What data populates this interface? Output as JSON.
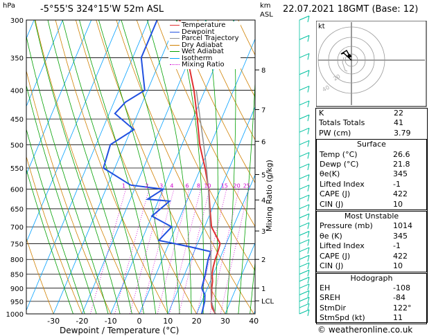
{
  "header": {
    "pressure_unit": "hPa",
    "location": "-5°55'S  324°15'W  52m  ASL",
    "height_unit_km": "km",
    "height_unit_asl": "ASL",
    "datetime": "22.07.2021  18GMT  (Base: 12)"
  },
  "chart_data": {
    "type": "line",
    "xlabel": "Dewpoint / Temperature (°C)",
    "ylabel": "hPa",
    "right_axis_label": "Mixing Ratio (g/kg)",
    "x_ticks": [
      -30,
      -20,
      -10,
      0,
      10,
      20,
      30,
      40
    ],
    "pressure_ticks": [
      300,
      350,
      400,
      450,
      500,
      550,
      600,
      650,
      700,
      750,
      800,
      850,
      900,
      950,
      1000
    ],
    "pressure_ticks_labelled": [
      "300",
      "350",
      "400",
      "450",
      "500",
      "550",
      "600",
      "650",
      "700",
      "750",
      "800",
      "850",
      "900",
      "950",
      "1000"
    ],
    "km_ticks": [
      {
        "label": "8",
        "p": 368
      },
      {
        "label": "7",
        "p": 433
      },
      {
        "label": "6",
        "p": 493
      },
      {
        "label": "5",
        "p": 565
      },
      {
        "label": "4",
        "p": 627
      },
      {
        "label": "3",
        "p": 712
      },
      {
        "label": "2",
        "p": 800
      },
      {
        "label": "1",
        "p": 900
      },
      {
        "label": "LCL",
        "p": 948
      }
    ],
    "mixing_ratio_labels": [
      "1",
      "2",
      "3",
      "4",
      "6",
      "8",
      "10",
      "15",
      "20",
      "25"
    ],
    "mixing_ratio_values": [
      1,
      2,
      3,
      4,
      6,
      8,
      10,
      15,
      20,
      25
    ],
    "legend": [
      {
        "name": "Temperature",
        "color": "#e03030"
      },
      {
        "name": "Dewpoint",
        "color": "#2050e0"
      },
      {
        "name": "Parcel Trajectory",
        "color": "#909090"
      },
      {
        "name": "Dry Adiabat",
        "color": "#d08000"
      },
      {
        "name": "Wet Adiabat",
        "color": "#00a000"
      },
      {
        "name": "Isotherm",
        "color": "#00a0ff"
      },
      {
        "name": "Mixing Ratio",
        "color": "#d000d0"
      }
    ],
    "series": [
      {
        "name": "Temperature",
        "color": "#e03030",
        "points": [
          [
            1000,
            26.6
          ],
          [
            975,
            24.5
          ],
          [
            950,
            23.3
          ],
          [
            925,
            22.5
          ],
          [
            900,
            21.5
          ],
          [
            875,
            20.8
          ],
          [
            850,
            19.6
          ],
          [
            825,
            18.9
          ],
          [
            800,
            18.5
          ],
          [
            775,
            18.3
          ],
          [
            750,
            17.9
          ],
          [
            725,
            15.2
          ],
          [
            700,
            12.4
          ],
          [
            650,
            9.2
          ],
          [
            600,
            5.9
          ],
          [
            550,
            1.5
          ],
          [
            500,
            -3.8
          ],
          [
            450,
            -8.4
          ],
          [
            400,
            -13.8
          ],
          [
            350,
            -20.9
          ],
          [
            300,
            -29.1
          ]
        ]
      },
      {
        "name": "Dewpoint",
        "color": "#2050e0",
        "points": [
          [
            1000,
            21.8
          ],
          [
            950,
            21.0
          ],
          [
            925,
            20.1
          ],
          [
            900,
            18.0
          ],
          [
            850,
            17.2
          ],
          [
            800,
            16.0
          ],
          [
            775,
            15.8
          ],
          [
            760,
            8.0
          ],
          [
            740,
            -4.0
          ],
          [
            700,
            -1.5
          ],
          [
            670,
            -10.0
          ],
          [
            630,
            -6.0
          ],
          [
            625,
            -14.0
          ],
          [
            600,
            -10.0
          ],
          [
            590,
            -22.0
          ],
          [
            550,
            -34.0
          ],
          [
            500,
            -35.0
          ],
          [
            470,
            -29.0
          ],
          [
            440,
            -38.0
          ],
          [
            420,
            -36.0
          ],
          [
            400,
            -31.0
          ],
          [
            350,
            -37.0
          ],
          [
            300,
            -37.0
          ]
        ]
      },
      {
        "name": "Parcel Trajectory",
        "color": "#909090",
        "points": [
          [
            1000,
            26.6
          ],
          [
            950,
            23.3
          ],
          [
            900,
            21.2
          ],
          [
            850,
            19.2
          ],
          [
            800,
            17.0
          ],
          [
            750,
            14.6
          ],
          [
            700,
            12.0
          ],
          [
            650,
            9.0
          ],
          [
            600,
            5.8
          ],
          [
            550,
            2.0
          ],
          [
            500,
            -2.4
          ],
          [
            450,
            -7.4
          ],
          [
            400,
            -13.0
          ]
        ]
      }
    ]
  },
  "hodograph": {
    "unit_label": "kt",
    "ring_labels": [
      "40",
      "20"
    ]
  },
  "indices": {
    "basic": [
      {
        "label": "K",
        "value": "22"
      },
      {
        "label": "Totals Totals",
        "value": "41"
      },
      {
        "label": "PW (cm)",
        "value": "3.79"
      }
    ],
    "surface_title": "Surface",
    "surface": [
      {
        "label": "Temp (°C)",
        "value": "26.6"
      },
      {
        "label": "Dewp (°C)",
        "value": "21.8"
      },
      {
        "label": "θe(K)",
        "value": "345"
      },
      {
        "label": "Lifted Index",
        "value": "-1"
      },
      {
        "label": "CAPE (J)",
        "value": "422"
      },
      {
        "label": "CIN (J)",
        "value": "10"
      }
    ],
    "most_unstable_title": "Most Unstable",
    "most_unstable": [
      {
        "label": "Pressure (mb)",
        "value": "1014"
      },
      {
        "label": "θe (K)",
        "value": "345"
      },
      {
        "label": "Lifted Index",
        "value": "-1"
      },
      {
        "label": "CAPE (J)",
        "value": "422"
      },
      {
        "label": "CIN (J)",
        "value": "10"
      }
    ],
    "hodograph_title": "Hodograph",
    "hodograph": [
      {
        "label": "EH",
        "value": "-108"
      },
      {
        "label": "SREH",
        "value": "-84"
      },
      {
        "label": "StmDir",
        "value": "122°"
      },
      {
        "label": "StmSpd (kt)",
        "value": "11"
      }
    ]
  },
  "footer": {
    "copyright": "© weatheronline.co.uk"
  },
  "colors": {
    "temperature": "#e03030",
    "dewpoint": "#2050e0",
    "parcel": "#909090",
    "dry_adiabat": "#d08000",
    "wet_adiabat": "#00a000",
    "isotherm": "#00a0ff",
    "mixing_ratio": "#d000d0",
    "wind_barbs": "#00c0a0"
  }
}
